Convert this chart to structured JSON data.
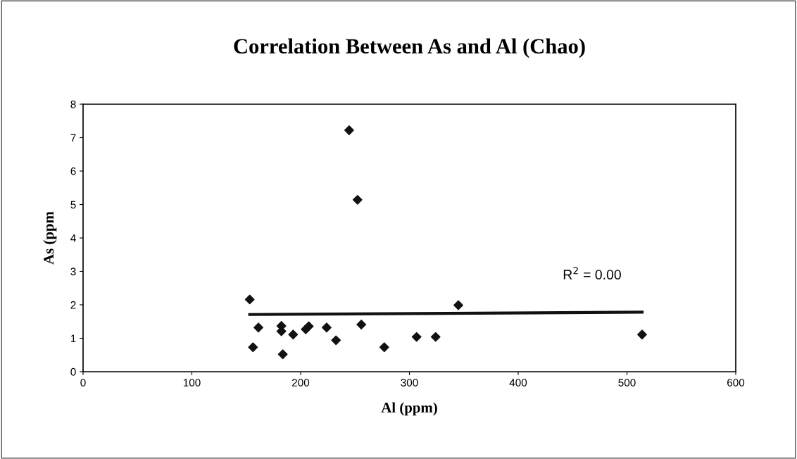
{
  "chart_data": {
    "type": "scatter",
    "title": "Correlation Between As and Al (Chao)",
    "xlabel": "Al (ppm)",
    "ylabel": "As (ppm",
    "xlim": [
      0,
      600
    ],
    "xticks": [
      0,
      100,
      200,
      300,
      400,
      500,
      600
    ],
    "ylim": [
      0,
      8
    ],
    "yticks": [
      0,
      1,
      2,
      3,
      4,
      5,
      6,
      7,
      8
    ],
    "grid": false,
    "legend": false,
    "marker": "diamond",
    "annotations": [
      "R$^{2}$ = 0.00"
    ],
    "series": [
      {
        "color": "#111111",
        "x": [
          153.2,
          156.2,
          161.2,
          182.3,
          182.3,
          183.6,
          193.1,
          204.7,
          207.5,
          223.9,
          232.5,
          244.6,
          252.3,
          255.8,
          276.9,
          306.6,
          324.1,
          345,
          513.9
        ],
        "values": [
          2.16,
          0.73,
          1.32,
          1.37,
          1.21,
          0.52,
          1.11,
          1.27,
          1.36,
          1.32,
          0.94,
          7.22,
          5.14,
          1.41,
          0.73,
          1.04,
          1.04,
          1.99,
          1.11
        ]
      },
      {
        "type": "line",
        "color": "#111111",
        "x": [
          153.2,
          513.9
        ],
        "values": [
          1.71,
          1.78
        ],
        "line_style": "solid",
        "marker": "none"
      }
    ]
  }
}
